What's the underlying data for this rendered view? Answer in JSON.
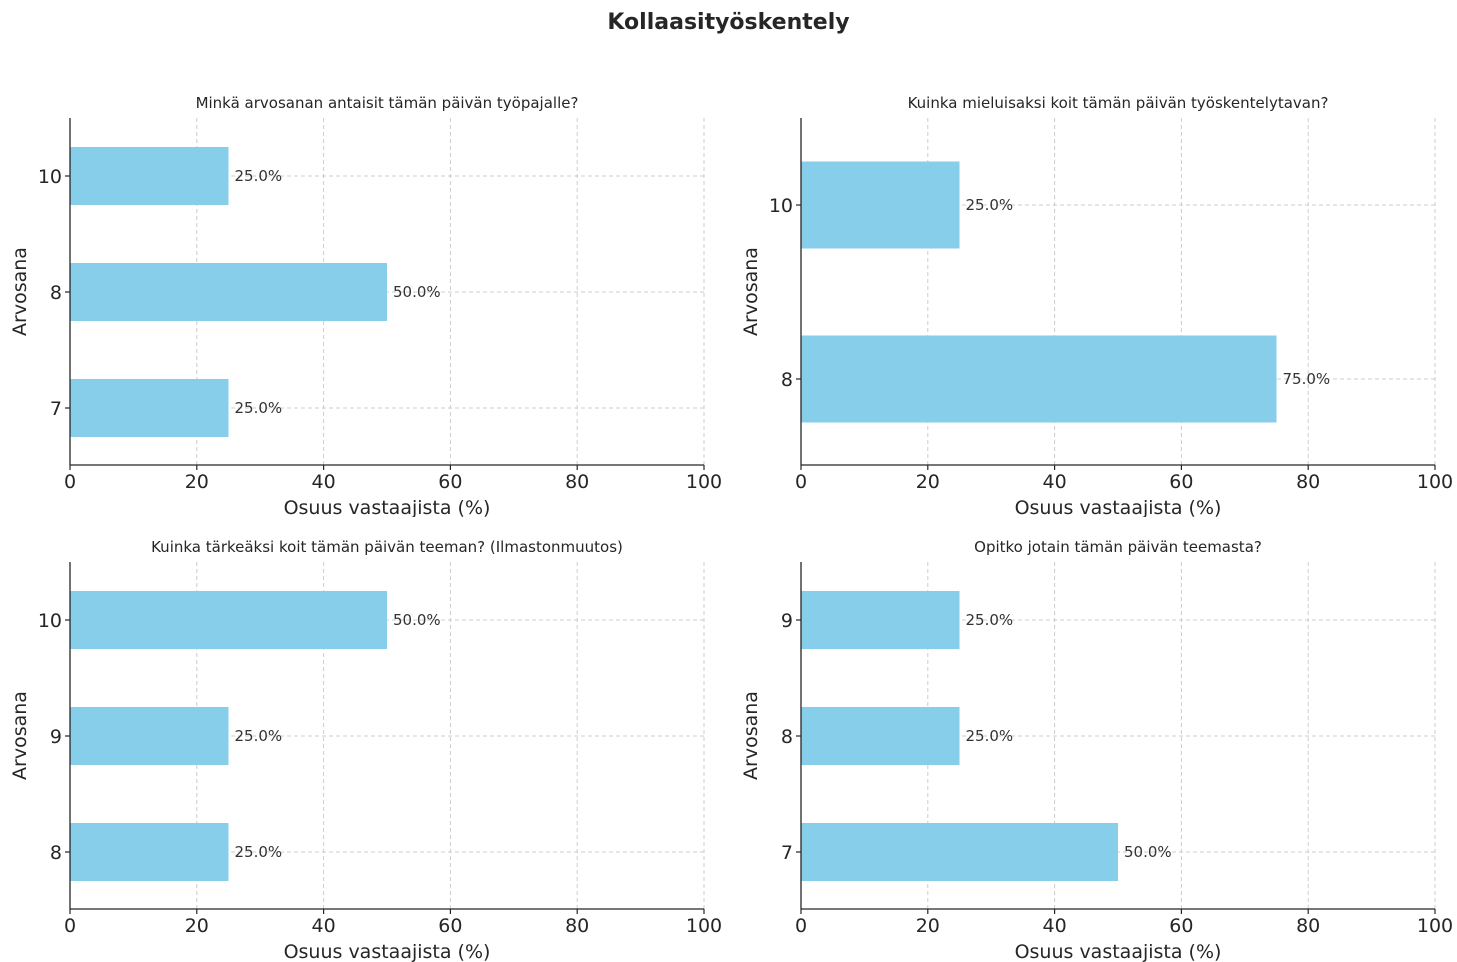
{
  "page": {
    "title": "Kollaasityöskentely"
  },
  "colors": {
    "bar": "#87CEEB",
    "grid": "#cccccc",
    "axis": "#262626",
    "text": "#262626"
  },
  "chart_data": [
    {
      "type": "bar",
      "orientation": "horizontal",
      "title": "Minkä arvosanan antaisit tämän päivän työpajalle?",
      "xlabel": "Osuus vastaajista (%)",
      "ylabel": "Arvosana",
      "categories": [
        "7",
        "8",
        "10"
      ],
      "values": [
        25.0,
        50.0,
        25.0
      ],
      "value_labels": [
        "25.0%",
        "50.0%",
        "25.0%"
      ],
      "xlim": [
        0,
        100
      ],
      "xticks": [
        0,
        20,
        40,
        60,
        80,
        100
      ],
      "grid": true
    },
    {
      "type": "bar",
      "orientation": "horizontal",
      "title": "Kuinka mieluisaksi koit tämän päivän työskentelytavan?",
      "xlabel": "Osuus vastaajista (%)",
      "ylabel": "Arvosana",
      "categories": [
        "8",
        "10"
      ],
      "values": [
        75.0,
        25.0
      ],
      "value_labels": [
        "75.0%",
        "25.0%"
      ],
      "xlim": [
        0,
        100
      ],
      "xticks": [
        0,
        20,
        40,
        60,
        80,
        100
      ],
      "grid": true
    },
    {
      "type": "bar",
      "orientation": "horizontal",
      "title": "Kuinka tärkeäksi koit tämän päivän teeman? (Ilmastonmuutos)",
      "xlabel": "Osuus vastaajista (%)",
      "ylabel": "Arvosana",
      "categories": [
        "8",
        "9",
        "10"
      ],
      "values": [
        25.0,
        25.0,
        50.0
      ],
      "value_labels": [
        "25.0%",
        "25.0%",
        "50.0%"
      ],
      "xlim": [
        0,
        100
      ],
      "xticks": [
        0,
        20,
        40,
        60,
        80,
        100
      ],
      "grid": true
    },
    {
      "type": "bar",
      "orientation": "horizontal",
      "title": "Opitko jotain tämän päivän teemasta?",
      "xlabel": "Osuus vastaajista (%)",
      "ylabel": "Arvosana",
      "categories": [
        "7",
        "8",
        "9"
      ],
      "values": [
        50.0,
        25.0,
        25.0
      ],
      "value_labels": [
        "50.0%",
        "25.0%",
        "25.0%"
      ],
      "xlim": [
        0,
        100
      ],
      "xticks": [
        0,
        20,
        40,
        60,
        80,
        100
      ],
      "grid": true
    }
  ]
}
